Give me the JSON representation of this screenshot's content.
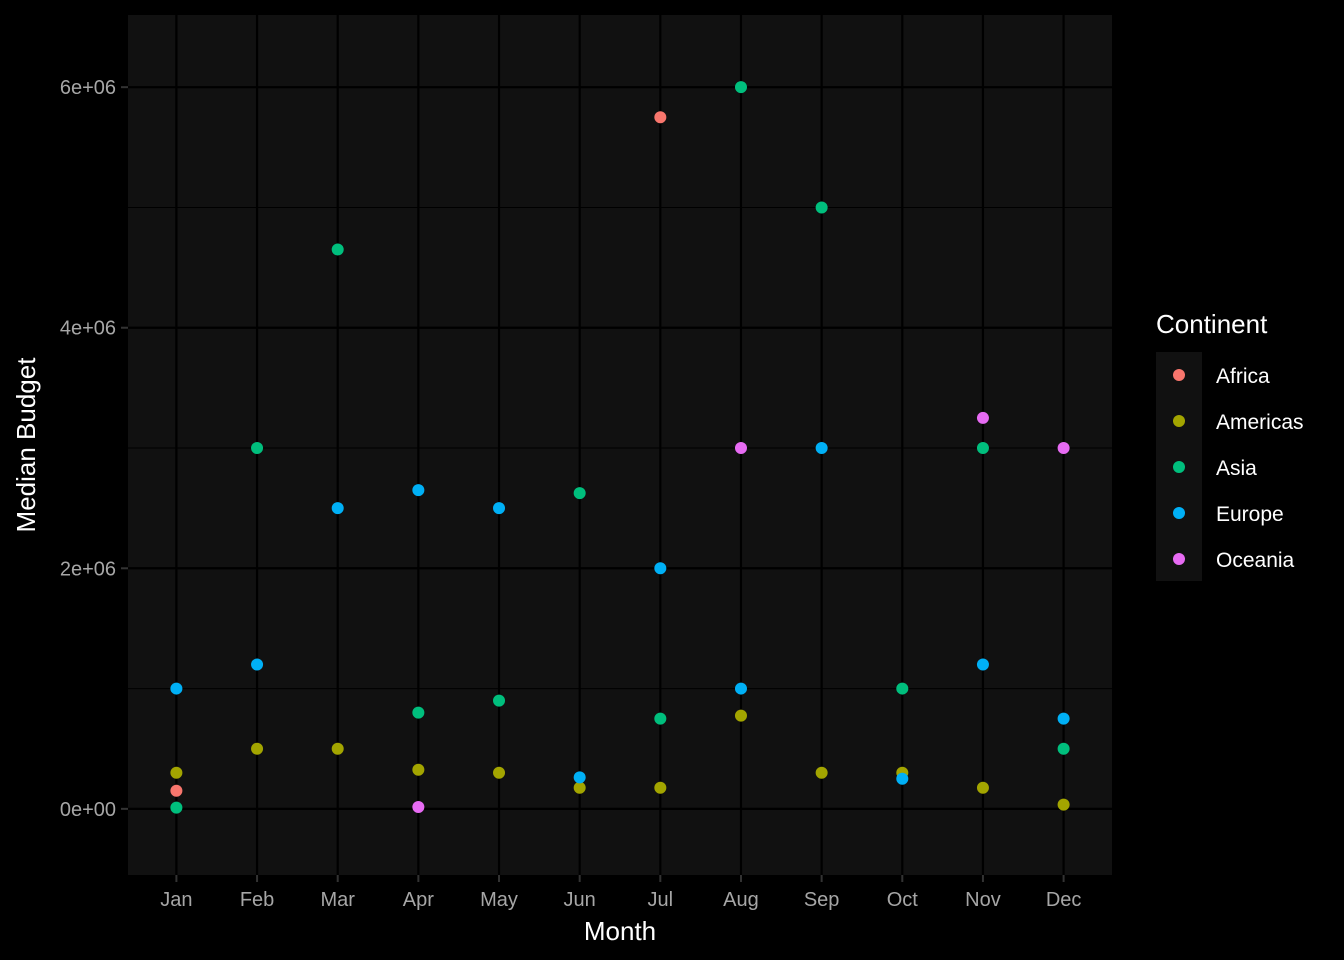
{
  "chart_data": {
    "type": "scatter",
    "xlabel": "Month",
    "ylabel": "Median Budget",
    "categories": [
      "Jan",
      "Feb",
      "Mar",
      "Apr",
      "May",
      "Jun",
      "Jul",
      "Aug",
      "Sep",
      "Oct",
      "Nov",
      "Dec"
    ],
    "ylim": [
      -550000,
      6600000
    ],
    "y_ticks": [
      0,
      2000000,
      4000000,
      6000000
    ],
    "y_tick_labels": [
      "0e+00",
      "2e+06",
      "4e+06",
      "6e+06"
    ],
    "grid": true,
    "legend": {
      "title": "Continent",
      "placement": "right"
    },
    "colors": {
      "background": "#000000",
      "panel": "#111111",
      "gridline": "#000000"
    },
    "series": [
      {
        "name": "Africa",
        "color": "#F8766D",
        "points": [
          {
            "x": "Jan",
            "y": 150000
          },
          {
            "x": "Jul",
            "y": 5750000
          }
        ]
      },
      {
        "name": "Americas",
        "color": "#A3A500",
        "points": [
          {
            "x": "Jan",
            "y": 300000
          },
          {
            "x": "Feb",
            "y": 500000
          },
          {
            "x": "Mar",
            "y": 500000
          },
          {
            "x": "Apr",
            "y": 325000
          },
          {
            "x": "May",
            "y": 300000
          },
          {
            "x": "Jun",
            "y": 175000
          },
          {
            "x": "Jul",
            "y": 175000
          },
          {
            "x": "Aug",
            "y": 775000
          },
          {
            "x": "Sep",
            "y": 300000
          },
          {
            "x": "Oct",
            "y": 300000
          },
          {
            "x": "Nov",
            "y": 175000
          },
          {
            "x": "Dec",
            "y": 35000
          }
        ]
      },
      {
        "name": "Asia",
        "color": "#00BF7D",
        "points": [
          {
            "x": "Jan",
            "y": 10000
          },
          {
            "x": "Feb",
            "y": 3000000
          },
          {
            "x": "Mar",
            "y": 4650000
          },
          {
            "x": "Apr",
            "y": 800000
          },
          {
            "x": "May",
            "y": 900000
          },
          {
            "x": "Jun",
            "y": 2625000
          },
          {
            "x": "Jul",
            "y": 750000
          },
          {
            "x": "Aug",
            "y": 6000000
          },
          {
            "x": "Sep",
            "y": 5000000
          },
          {
            "x": "Oct",
            "y": 1000000
          },
          {
            "x": "Nov",
            "y": 3000000
          },
          {
            "x": "Dec",
            "y": 500000
          }
        ]
      },
      {
        "name": "Europe",
        "color": "#00B0F6",
        "points": [
          {
            "x": "Jan",
            "y": 1000000
          },
          {
            "x": "Feb",
            "y": 1200000
          },
          {
            "x": "Mar",
            "y": 2500000
          },
          {
            "x": "Apr",
            "y": 2650000
          },
          {
            "x": "May",
            "y": 2500000
          },
          {
            "x": "Jun",
            "y": 262000
          },
          {
            "x": "Jul",
            "y": 2000000
          },
          {
            "x": "Aug",
            "y": 1000000
          },
          {
            "x": "Sep",
            "y": 3000000
          },
          {
            "x": "Oct",
            "y": 250000
          },
          {
            "x": "Nov",
            "y": 1200000
          },
          {
            "x": "Dec",
            "y": 750000
          }
        ]
      },
      {
        "name": "Oceania",
        "color": "#E76BF3",
        "points": [
          {
            "x": "Apr",
            "y": 15000
          },
          {
            "x": "Aug",
            "y": 3000000
          },
          {
            "x": "Nov",
            "y": 3250000
          },
          {
            "x": "Dec",
            "y": 3000000
          }
        ]
      }
    ]
  }
}
